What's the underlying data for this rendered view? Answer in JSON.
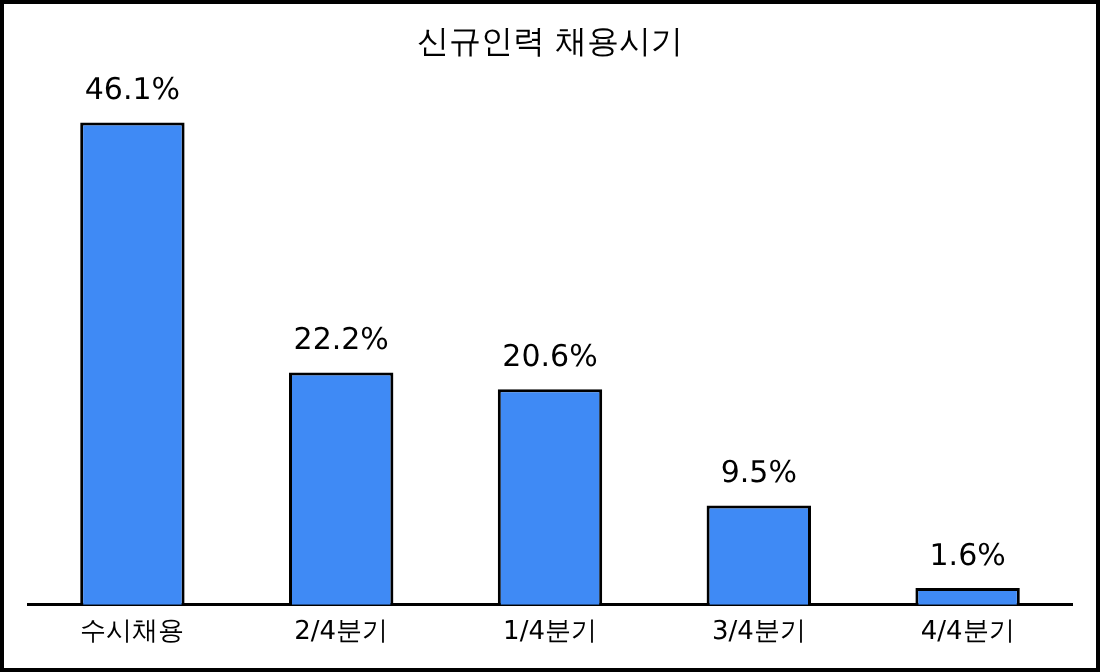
{
  "chart_data": {
    "type": "bar",
    "title": "신규인력 채용시기",
    "categories": [
      "수시채용",
      "2/4분기",
      "1/4분기",
      "3/4분기",
      "4/4분기"
    ],
    "values": [
      46.1,
      22.2,
      20.6,
      9.5,
      1.6
    ],
    "value_labels": [
      "46.1%",
      "22.2%",
      "20.6%",
      "9.5%",
      "1.6%"
    ],
    "color": "#3f8af5",
    "grid": false,
    "legend": false,
    "tick_labels": "x"
  }
}
